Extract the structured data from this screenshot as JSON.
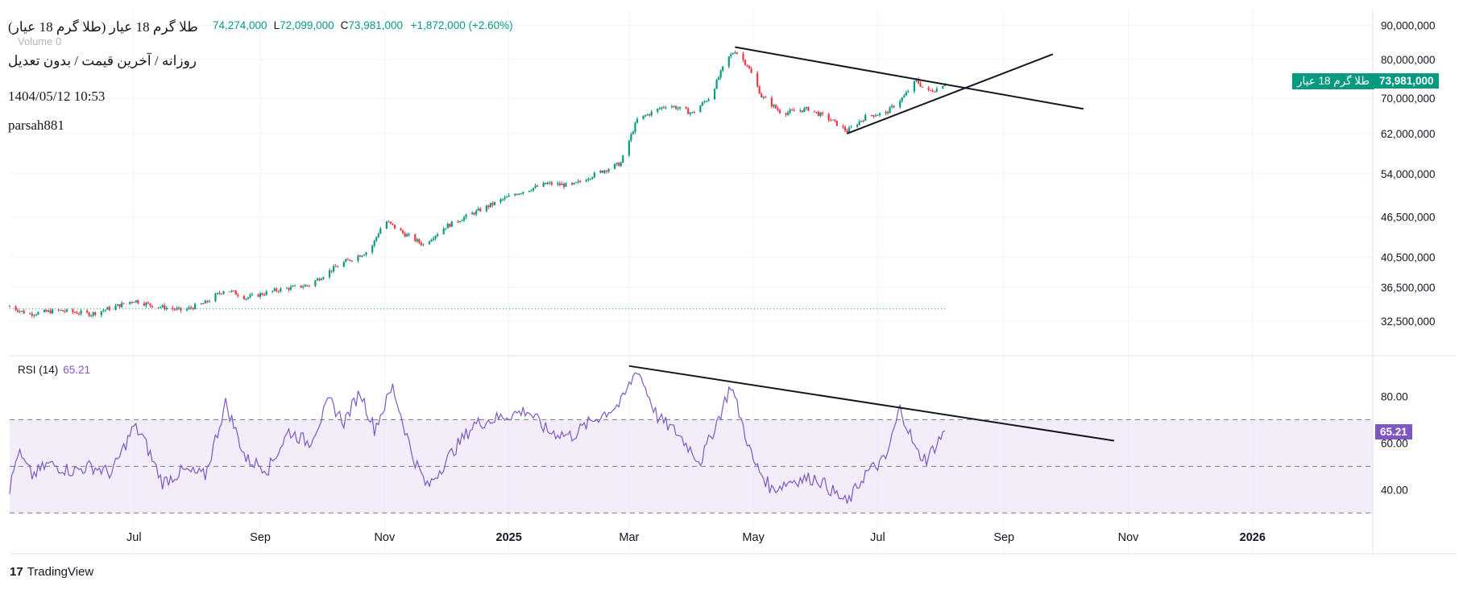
{
  "header": {
    "title": "طلا گرم 18 عیار (طلا گرم 18 عیار)",
    "subtitle": "روزانه / آخرین قیمت / بدون تعدیل",
    "datetime": "1404/05/12 10:53",
    "author": "parsah881"
  },
  "ohlc": {
    "high_tail": "74,274,000",
    "low_key": "L",
    "low": "72,099,000",
    "close_key": "C",
    "close": "73,981,000",
    "change": "+1,872,000 (+2.60%)"
  },
  "volume": {
    "label": "Volume",
    "value": "0"
  },
  "price_badge": {
    "name": "طلا گرم 18 عیار",
    "value": "73,981,000"
  },
  "rsi_header": {
    "label": "RSI (14)",
    "value": "65.21"
  },
  "rsi_badge": "65.21",
  "branding": {
    "logo_text": "TradingView",
    "logo_mark": "17"
  },
  "colors": {
    "up": "#089981",
    "down": "#f23645",
    "rsi_line": "#7e57c2",
    "rsi_band": "#ede7f6",
    "trendline": "#131722",
    "grid": "#f0f3fa"
  },
  "chart_data": [
    {
      "type": "candlestick",
      "scale": "log",
      "x_range": [
        "2024-05-01",
        "2026-03-01"
      ],
      "ylim": [
        29000000,
        95000000
      ],
      "y_ticks": [
        "90,000,000",
        "80,000,000",
        "70,000,000",
        "62,000,000",
        "54,000,000",
        "46,500,000",
        "40,500,000",
        "36,500,000",
        "32,500,000"
      ],
      "y_tick_values": [
        90000000,
        80000000,
        70000000,
        62000000,
        54000000,
        46500000,
        40500000,
        36500000,
        32500000
      ],
      "x_ticks": [
        "Jul",
        "Sep",
        "Nov",
        "2025",
        "Mar",
        "May",
        "Jul",
        "Sep",
        "Nov",
        "2026"
      ],
      "x_tick_dates": [
        "2024-07-01",
        "2024-09-01",
        "2024-11-01",
        "2025-01-01",
        "2025-03-01",
        "2025-05-01",
        "2025-07-01",
        "2025-09-01",
        "2025-11-01",
        "2026-01-01"
      ],
      "reference_line": {
        "value": 33900000,
        "from": "2024-05-01",
        "to": "2025-08-03",
        "style": "dotted"
      },
      "price_path": [
        [
          "2024-05-01",
          34200000
        ],
        [
          "2024-05-10",
          33300000
        ],
        [
          "2024-05-25",
          33700000
        ],
        [
          "2024-06-10",
          33300000
        ],
        [
          "2024-06-25",
          34400000
        ],
        [
          "2024-07-01",
          34900000
        ],
        [
          "2024-07-10",
          34300000
        ],
        [
          "2024-07-25",
          33700000
        ],
        [
          "2024-08-05",
          34600000
        ],
        [
          "2024-08-15",
          36300000
        ],
        [
          "2024-08-25",
          35200000
        ],
        [
          "2024-09-10",
          36200000
        ],
        [
          "2024-09-25",
          36800000
        ],
        [
          "2024-10-10",
          39500000
        ],
        [
          "2024-10-25",
          41500000
        ],
        [
          "2024-11-01",
          46000000
        ],
        [
          "2024-11-10",
          44000000
        ],
        [
          "2024-11-20",
          42300000
        ],
        [
          "2024-12-01",
          45000000
        ],
        [
          "2024-12-20",
          48000000
        ],
        [
          "2025-01-05",
          50500000
        ],
        [
          "2025-01-20",
          52200000
        ],
        [
          "2025-02-01",
          51800000
        ],
        [
          "2025-02-10",
          53500000
        ],
        [
          "2025-02-25",
          56000000
        ],
        [
          "2025-03-05",
          65000000
        ],
        [
          "2025-03-20",
          68500000
        ],
        [
          "2025-04-01",
          66500000
        ],
        [
          "2025-04-10",
          70500000
        ],
        [
          "2025-04-18",
          80000000
        ],
        [
          "2025-04-22",
          82500000
        ],
        [
          "2025-04-28",
          78500000
        ],
        [
          "2025-05-05",
          70500000
        ],
        [
          "2025-05-15",
          66500000
        ],
        [
          "2025-05-28",
          67500000
        ],
        [
          "2025-06-08",
          65000000
        ],
        [
          "2025-06-16",
          62500000
        ],
        [
          "2025-06-26",
          66000000
        ],
        [
          "2025-07-05",
          66500000
        ],
        [
          "2025-07-14",
          70500000
        ],
        [
          "2025-07-20",
          74500000
        ],
        [
          "2025-07-25",
          71500000
        ],
        [
          "2025-07-31",
          72500000
        ],
        [
          "2025-08-03",
          73981000
        ]
      ],
      "trendlines": [
        {
          "name": "resistance",
          "from": [
            "2025-04-22",
            83500000
          ],
          "to": [
            "2025-10-10",
            67500000
          ]
        },
        {
          "name": "support",
          "from": [
            "2025-06-16",
            62000000
          ],
          "to": [
            "2025-09-25",
            81500000
          ]
        }
      ]
    },
    {
      "type": "line",
      "series": [
        {
          "name": "RSI (14)"
        }
      ],
      "ylim": [
        27,
        96
      ],
      "y_ticks": [
        "80.00",
        "60.00",
        "40.00"
      ],
      "y_tick_values": [
        80,
        60,
        40
      ],
      "band": [
        30,
        70
      ],
      "midline": 50,
      "last_value": 65.21,
      "rsi_path": [
        [
          "2024-05-01",
          40
        ],
        [
          "2024-05-05",
          56
        ],
        [
          "2024-05-12",
          46
        ],
        [
          "2024-05-20",
          51
        ],
        [
          "2024-06-01",
          48
        ],
        [
          "2024-06-10",
          50
        ],
        [
          "2024-06-20",
          47
        ],
        [
          "2024-07-01",
          67
        ],
        [
          "2024-07-05",
          63
        ],
        [
          "2024-07-15",
          43
        ],
        [
          "2024-07-25",
          48
        ],
        [
          "2024-08-05",
          46
        ],
        [
          "2024-08-15",
          77
        ],
        [
          "2024-08-25",
          53
        ],
        [
          "2024-09-05",
          49
        ],
        [
          "2024-09-15",
          65
        ],
        [
          "2024-09-25",
          60
        ],
        [
          "2024-10-05",
          78
        ],
        [
          "2024-10-12",
          69
        ],
        [
          "2024-10-20",
          82
        ],
        [
          "2024-10-27",
          66
        ],
        [
          "2024-11-05",
          84
        ],
        [
          "2024-11-15",
          54
        ],
        [
          "2024-11-22",
          41
        ],
        [
          "2024-12-05",
          57
        ],
        [
          "2024-12-15",
          68
        ],
        [
          "2024-12-28",
          71
        ],
        [
          "2025-01-10",
          74
        ],
        [
          "2025-01-20",
          65
        ],
        [
          "2025-02-01",
          63
        ],
        [
          "2025-02-10",
          69
        ],
        [
          "2025-02-25",
          77
        ],
        [
          "2025-03-05",
          92
        ],
        [
          "2025-03-15",
          71
        ],
        [
          "2025-03-25",
          64
        ],
        [
          "2025-04-05",
          52
        ],
        [
          "2025-04-15",
          73
        ],
        [
          "2025-04-20",
          85
        ],
        [
          "2025-05-01",
          52
        ],
        [
          "2025-05-10",
          40
        ],
        [
          "2025-05-20",
          44
        ],
        [
          "2025-06-01",
          45
        ],
        [
          "2025-06-08",
          40
        ],
        [
          "2025-06-16",
          34
        ],
        [
          "2025-06-25",
          47
        ],
        [
          "2025-07-05",
          53
        ],
        [
          "2025-07-12",
          75
        ],
        [
          "2025-07-16",
          66
        ],
        [
          "2025-07-20",
          56
        ],
        [
          "2025-07-25",
          53
        ],
        [
          "2025-08-03",
          65.21
        ]
      ],
      "trendlines": [
        {
          "name": "rsi-resistance",
          "from": [
            "2025-03-01",
            93
          ],
          "to": [
            "2025-10-25",
            61
          ]
        }
      ]
    }
  ]
}
